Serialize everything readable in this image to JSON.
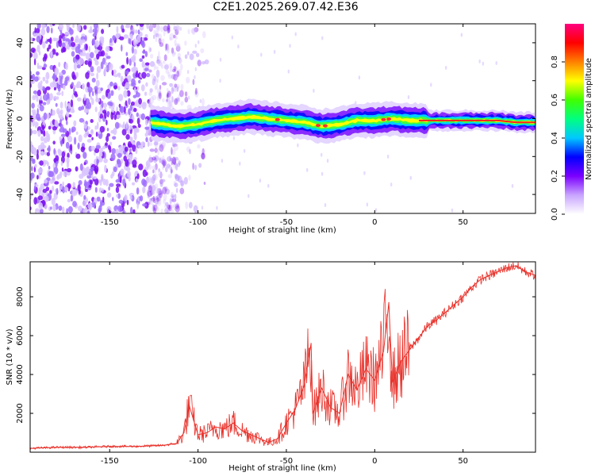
{
  "page_title": "C2E1.2025.269.07.42.E36",
  "chart_data": [
    {
      "type": "heatmap",
      "title": "C2E1.2025.269.07.42.E36",
      "xlabel": "Height of straight line (km)",
      "ylabel": "Frequency (Hz)",
      "xlim": [
        -195,
        91
      ],
      "ylim": [
        -50,
        50
      ],
      "x_ticks": [
        -150,
        -100,
        -50,
        0,
        50
      ],
      "y_ticks": [
        -40,
        -20,
        0,
        20,
        40
      ],
      "x_tick_labels": [
        "-150",
        "-100",
        "-50",
        "0",
        "50"
      ],
      "y_tick_labels": [
        "-40",
        "-20",
        "0",
        "20",
        "40"
      ],
      "ridge": {
        "x": [
          -127,
          -120,
          -110,
          -100,
          -90,
          -80,
          -70,
          -60,
          -50,
          -40,
          -30,
          -20,
          -10,
          0,
          10,
          20,
          30,
          40,
          50,
          60,
          70,
          80,
          91
        ],
        "freq": [
          -2,
          -3,
          -4,
          -3,
          -1,
          0,
          1,
          0,
          -1,
          -2,
          -4,
          -3,
          -1,
          -1,
          0,
          -1,
          -1,
          -1,
          -1,
          -1,
          -1,
          -2,
          -2
        ]
      },
      "noise_region": {
        "x_from": -195,
        "x_to": -110
      },
      "colorbar": {
        "label": "Normalized spectral amplitude",
        "range": [
          0,
          1
        ],
        "ticks": [
          0.0,
          0.2,
          0.4,
          0.6,
          0.8
        ],
        "tick_labels": [
          "0.0",
          "0.2",
          "0.4",
          "0.6",
          "0.8"
        ],
        "colors": [
          "#ffffff",
          "#c9a5ff",
          "#7b00ff",
          "#0000ff",
          "#00c8ff",
          "#00ff80",
          "#40ff00",
          "#ffff00",
          "#ff8000",
          "#ff0000",
          "#ff0080"
        ]
      }
    },
    {
      "type": "line",
      "xlabel": "Height of straight line (km)",
      "ylabel": "SNR (10 * v/v)",
      "xlim": [
        -195,
        91
      ],
      "ylim": [
        0,
        9800
      ],
      "x_ticks": [
        -150,
        -100,
        -50,
        0,
        50
      ],
      "y_ticks": [
        2000,
        4000,
        6000,
        8000
      ],
      "x_tick_labels": [
        "-150",
        "-100",
        "-50",
        "0",
        "50"
      ],
      "y_tick_labels": [
        "2000",
        "4000",
        "6000",
        "8000"
      ],
      "color": "#e8312a",
      "series": [
        {
          "name": "SNR",
          "x": [
            -195,
            -180,
            -165,
            -150,
            -135,
            -120,
            -112,
            -108,
            -105,
            -100,
            -95,
            -90,
            -85,
            -80,
            -75,
            -70,
            -65,
            -60,
            -55,
            -50,
            -45,
            -40,
            -36,
            -35,
            -30,
            -25,
            -20,
            -15,
            -10,
            -5,
            0,
            5,
            8,
            10,
            15,
            20,
            25,
            30,
            35,
            40,
            45,
            50,
            55,
            60,
            65,
            70,
            75,
            80,
            85,
            91
          ],
          "values": [
            200,
            250,
            250,
            300,
            300,
            350,
            450,
            1000,
            2400,
            900,
            1000,
            1300,
            1200,
            1500,
            1100,
            900,
            700,
            500,
            700,
            1500,
            2200,
            3400,
            5600,
            2000,
            3300,
            2300,
            2000,
            4000,
            3200,
            4300,
            3700,
            5200,
            7700,
            3600,
            4700,
            5300,
            5900,
            6500,
            6800,
            7200,
            7600,
            8000,
            8500,
            8900,
            9100,
            9300,
            9500,
            9600,
            9300,
            9100
          ]
        }
      ]
    }
  ]
}
